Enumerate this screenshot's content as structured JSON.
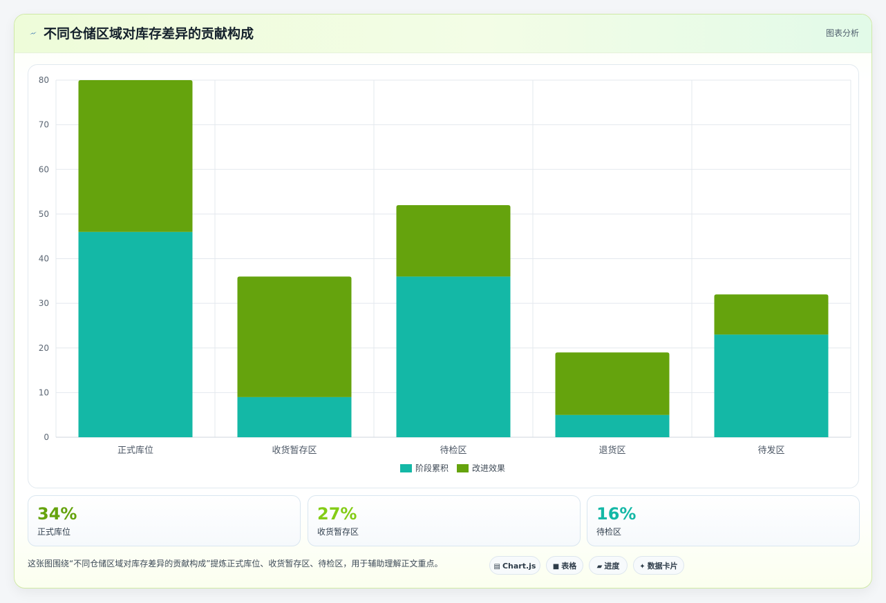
{
  "header": {
    "title": "不同仓储区域对库存差异的贡献构成",
    "right_label": "图表分析",
    "icon": "lightning-icon"
  },
  "chart_data": {
    "type": "bar",
    "stacked": true,
    "categories": [
      "正式库位",
      "收货暂存区",
      "待检区",
      "退货区",
      "待发区"
    ],
    "series": [
      {
        "name": "阶段累积",
        "color": "#14b8a6",
        "values": [
          46,
          9,
          36,
          5,
          23
        ]
      },
      {
        "name": "改进效果",
        "color": "#65a30d",
        "values": [
          34,
          27,
          16,
          14,
          9
        ]
      }
    ],
    "ylim": [
      0,
      80
    ],
    "yticks": [
      0,
      10,
      20,
      30,
      40,
      50,
      60,
      70,
      80
    ],
    "grid": true,
    "legend_position": "bottom"
  },
  "stats": [
    {
      "value": "34%",
      "label": "正式库位",
      "color": "#65a30d"
    },
    {
      "value": "27%",
      "label": "收货暂存区",
      "color": "#84cc16"
    },
    {
      "value": "16%",
      "label": "待检区",
      "color": "#14b8a6"
    }
  ],
  "footer": {
    "text": "这张图围绕“不同仓储区域对库存差异的贡献构成”提炼正式库位、收货暂存区、待检区，用于辅助理解正文重点。"
  },
  "chips": [
    {
      "icon": "▤",
      "icon_name": "chart-icon",
      "label": "Chart.js"
    },
    {
      "icon": "■",
      "icon_name": "table-icon",
      "label": "表格"
    },
    {
      "icon": "▰",
      "icon_name": "progress-icon",
      "label": "进度"
    },
    {
      "icon": "✦",
      "icon_name": "sparkle-icon",
      "label": "数据卡片"
    }
  ]
}
